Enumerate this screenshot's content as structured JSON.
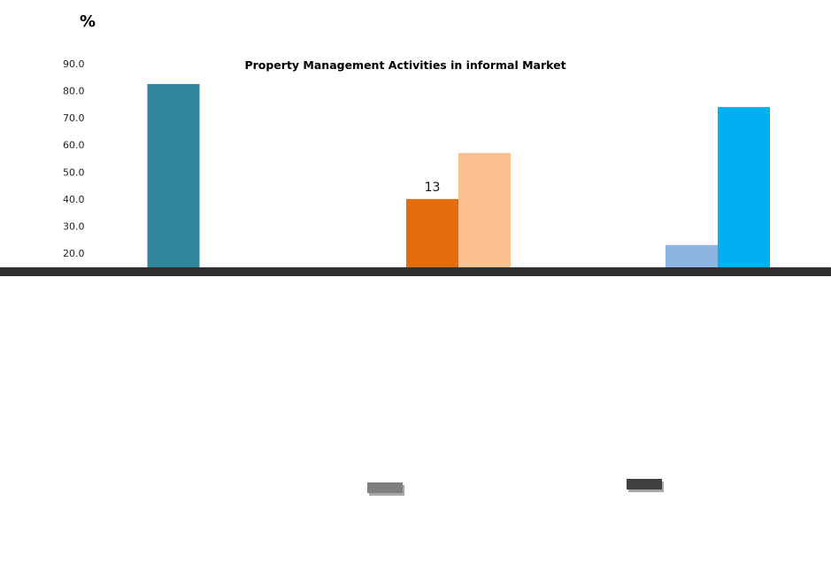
{
  "chart_data": {
    "type": "bar",
    "title": "Property Management Activities in informal Market",
    "ylabel": "%",
    "xlabel": "",
    "ylim": [
      20,
      90
    ],
    "yticks": [
      "90.0",
      "80.0",
      "70.0",
      "60.0",
      "50.0",
      "40.0",
      "30.0",
      "20.0"
    ],
    "groups": [
      {
        "bars": [
          {
            "value": 82.5,
            "color": "#31859c"
          }
        ]
      },
      {
        "bars": [
          {
            "value": 40.0,
            "color": "#e46c0a",
            "label": "13"
          },
          {
            "value": 57.0,
            "color": "#fac090"
          }
        ]
      },
      {
        "bars": [
          {
            "value": 23.0,
            "color": "#8eb4e3"
          },
          {
            "value": 74.0,
            "color": "#00b0f0"
          }
        ]
      }
    ],
    "baseline_color": "#303030",
    "legend_swatches": [
      {
        "color": "#7f7f7f"
      },
      {
        "color": "#404040"
      }
    ]
  }
}
